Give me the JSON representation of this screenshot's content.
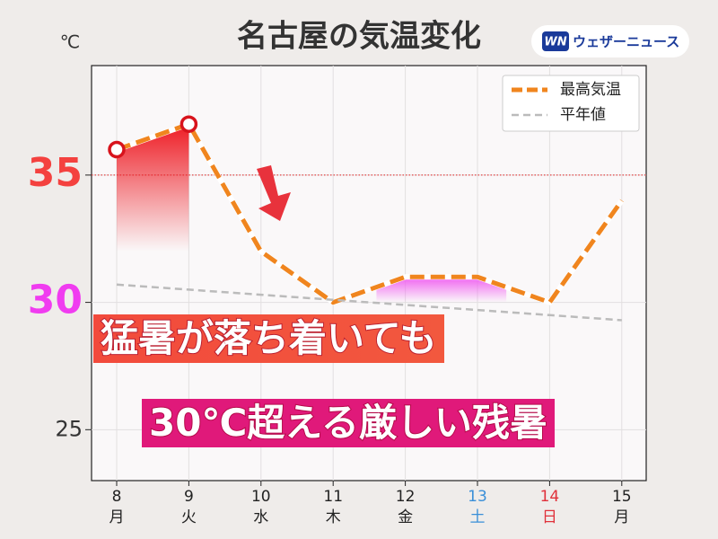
{
  "chart_data": {
    "type": "line",
    "title": "名古屋の気温変化",
    "brand": "ウェザーニュース",
    "brand_badge": "WN",
    "y_label": "℃",
    "categories": [
      "8",
      "9",
      "10",
      "11",
      "12",
      "13",
      "14",
      "15"
    ],
    "weekdays": [
      "月",
      "火",
      "水",
      "木",
      "金",
      "土",
      "日",
      "月"
    ],
    "category_colors": [
      "#222222",
      "#222222",
      "#222222",
      "#222222",
      "#222222",
      "#3a8fd8",
      "#e0303a",
      "#222222"
    ],
    "series": [
      {
        "name": "最高気温",
        "color": "#f0851e",
        "values": [
          36,
          37,
          32,
          30,
          31,
          31,
          30,
          34
        ],
        "marker_indices": [
          0,
          1
        ]
      },
      {
        "name": "平年値",
        "color": "#bbbbbb",
        "values": [
          30.7,
          30.5,
          30.3,
          30.1,
          29.9,
          29.7,
          29.5,
          29.3
        ]
      }
    ],
    "ylim": [
      23,
      39.3
    ],
    "yticks": [
      25,
      30,
      35
    ],
    "ytick_colors": [
      "#333333",
      "#f03cf0",
      "#f4413f"
    ],
    "reference_line": {
      "value": 35,
      "color": "#e02020"
    },
    "grid": true,
    "legend": "upper right",
    "annotations": [
      "猛暑が落ち着いても",
      "30℃超える厳しい残暑"
    ]
  }
}
